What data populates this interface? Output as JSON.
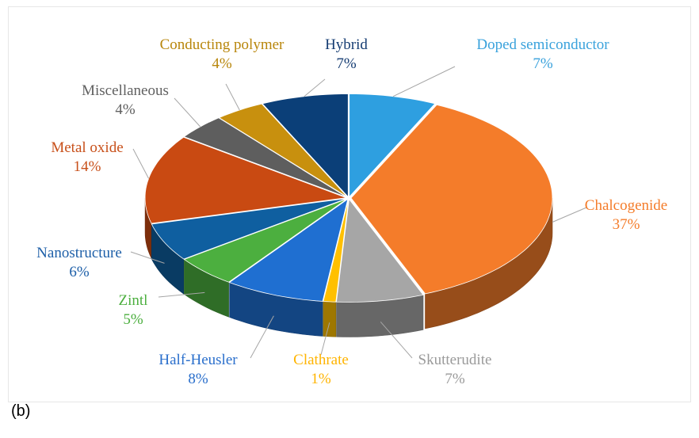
{
  "chart_data": {
    "type": "pie",
    "style": "3d-exploded-tilt",
    "start_angle_deg": 0,
    "direction": "clockwise",
    "slices": [
      {
        "label": "Doped semiconductor",
        "value": 7,
        "value_label": "7%",
        "color": "#2e9fe0",
        "label_color": "#3aa2dc"
      },
      {
        "label": "Chalcogenide",
        "value": 37,
        "value_label": "37%",
        "color": "#f47c2a",
        "label_color": "#f47c2a"
      },
      {
        "label": "Skutterudite",
        "value": 7,
        "value_label": "7%",
        "color": "#a6a6a6",
        "label_color": "#9a9a9a"
      },
      {
        "label": "Clathrate",
        "value": 1,
        "value_label": "1%",
        "color": "#ffc000",
        "label_color": "#ffb400"
      },
      {
        "label": "Half-Heusler",
        "value": 8,
        "value_label": "8%",
        "color": "#1f6fd1",
        "label_color": "#2a6fcc"
      },
      {
        "label": "Zintl",
        "value": 5,
        "value_label": "5%",
        "color": "#4caf3f",
        "label_color": "#4caf3f"
      },
      {
        "label": "Nanostructure",
        "value": 6,
        "value_label": "6%",
        "color": "#0f5fa0",
        "label_color": "#1d5fa8"
      },
      {
        "label": "Metal oxide",
        "value": 14,
        "value_label": "14%",
        "color": "#c94a12",
        "label_color": "#c8501a"
      },
      {
        "label": "Miscellaneous",
        "value": 4,
        "value_label": "4%",
        "color": "#5e5e5e",
        "label_color": "#606060"
      },
      {
        "label": "Conducting polymer",
        "value": 4,
        "value_label": "4%",
        "color": "#c8900e",
        "label_color": "#b8860b"
      },
      {
        "label": "Hybrid",
        "value": 7,
        "value_label": "7%",
        "color": "#0b3f78",
        "label_color": "#163d73"
      }
    ],
    "title": "",
    "legend": "none"
  },
  "panel_label": "(b)"
}
